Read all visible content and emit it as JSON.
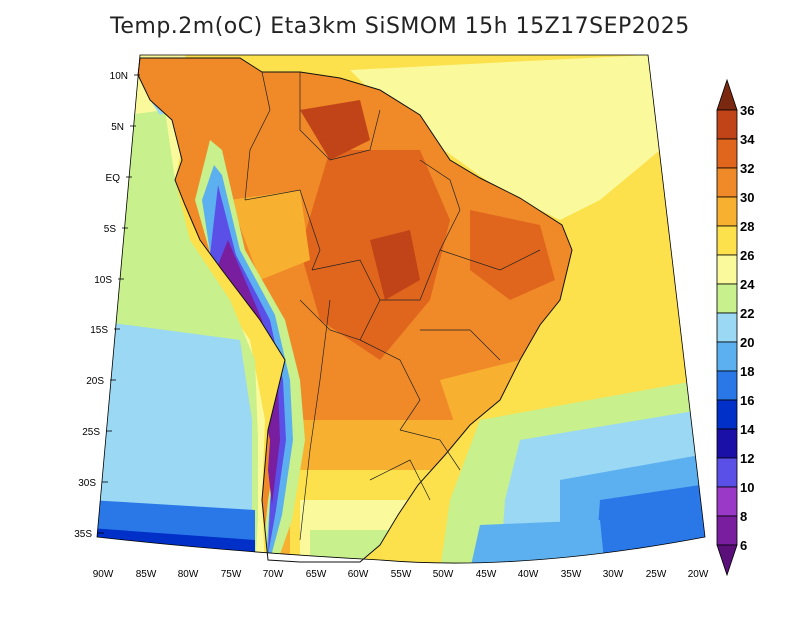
{
  "title": "Temp.2m(oC) Eta3km SiSMOM 15h 15Z17SEP2025",
  "map": {
    "lat_labels": [
      "10N",
      "5N",
      "EQ",
      "5S",
      "10S",
      "15S",
      "20S",
      "25S",
      "30S",
      "35S"
    ],
    "lon_labels": [
      "90W",
      "85W",
      "80W",
      "75W",
      "70W",
      "65W",
      "60W",
      "55W",
      "50W",
      "45W",
      "40W",
      "35W",
      "30W",
      "25W",
      "20W"
    ]
  },
  "colorbar": {
    "labels": [
      "6",
      "8",
      "10",
      "12",
      "14",
      "16",
      "18",
      "20",
      "22",
      "24",
      "26",
      "28",
      "30",
      "32",
      "34",
      "36"
    ],
    "colors": {
      "lt6": "#5a0f7a",
      "6_8": "#7a1ea0",
      "8_10": "#9a38c8",
      "10_12": "#5a50e8",
      "12_14": "#1a10a8",
      "14_16": "#0030c8",
      "16_18": "#2a78e8",
      "18_20": "#5cb0f0",
      "20_22": "#9ad8f4",
      "22_24": "#c8f08c",
      "24_26": "#fafa9c",
      "26_28": "#fce04c",
      "28_30": "#f8b030",
      "30_32": "#f08a28",
      "32_34": "#e0661e",
      "34_36": "#c04418",
      "gt36": "#7a2810"
    }
  }
}
